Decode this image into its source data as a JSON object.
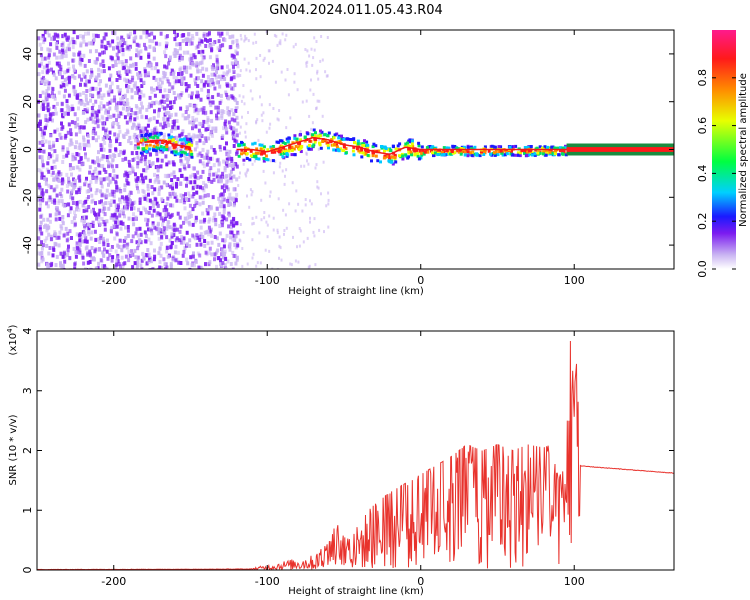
{
  "title": "GN04.2024.011.05.43.R04",
  "colors": {
    "spectrogram_low": "#c9b3f2",
    "spectrogram_mid": "#7b1bf0",
    "snr_line": "#e8322c",
    "ridge_line": "#f01818"
  },
  "chart_data": [
    {
      "type": "heatmap",
      "xlabel": "Height of straight line (km)",
      "ylabel": "Frequency (Hz)",
      "xlim": [
        -250,
        165
      ],
      "ylim": [
        -50,
        50
      ],
      "xticks": [
        "-200",
        "-100",
        "0",
        "100"
      ],
      "yticks": [
        "-40",
        "-20",
        "0",
        "20",
        "40"
      ],
      "grid": false,
      "ridge": {
        "x": [
          -180,
          -170,
          -160,
          -150,
          -120,
          -110,
          -100,
          -90,
          -80,
          -70,
          -60,
          -50,
          -40,
          -30,
          -20,
          -10,
          0,
          20,
          40,
          60,
          80,
          90,
          95,
          165
        ],
        "y": [
          3,
          4,
          2,
          1,
          0,
          0,
          -1,
          1,
          3,
          5,
          4,
          2,
          1,
          -1,
          -2,
          1,
          0,
          0,
          0,
          0,
          0,
          0,
          0,
          0
        ]
      },
      "colorbar": {
        "label": "Normalized spectral amplitude",
        "range": [
          0,
          1
        ],
        "ticks": [
          "0.0",
          "0.2",
          "0.4",
          "0.6",
          "0.8"
        ]
      }
    },
    {
      "type": "line",
      "xlabel": "Height of straight line (km)",
      "ylabel": "SNR (10 * v/v)",
      "yscale_label": "(x10",
      "yscale_exp": "4",
      "yscale_close": ")",
      "xlim": [
        -250,
        165
      ],
      "ylim": [
        0,
        4
      ],
      "xticks": [
        "-200",
        "-100",
        "0",
        "100"
      ],
      "yticks": [
        "0",
        "1",
        "2",
        "3",
        "4"
      ],
      "grid": false,
      "series": [
        {
          "values_envelope": {
            "x": [
              -250,
              -150,
              -110,
              -100,
              -90,
              -80,
              -70,
              -60,
              -55,
              -50,
              -45,
              -40,
              -30,
              -20,
              -10,
              0,
              10,
              20,
              30,
              40,
              50,
              60,
              70,
              80,
              85,
              90,
              95,
              97,
              100,
              103,
              104,
              105,
              110,
              120,
              130,
              140,
              150,
              165
            ],
            "y": [
              0.02,
              0.03,
              0.04,
              0.08,
              0.15,
              0.2,
              0.25,
              0.45,
              0.8,
              0.55,
              0.5,
              0.85,
              1.1,
              1.3,
              1.45,
              1.6,
              1.75,
              1.9,
              2.1,
              2.0,
              2.1,
              2.0,
              2.1,
              2.05,
              2.1,
              1.5,
              2.0,
              4.0,
              3.0,
              3.9,
              1.75,
              1.74,
              1.73,
              1.71,
              1.69,
              1.67,
              1.65,
              1.62
            ]
          }
        }
      ]
    }
  ]
}
